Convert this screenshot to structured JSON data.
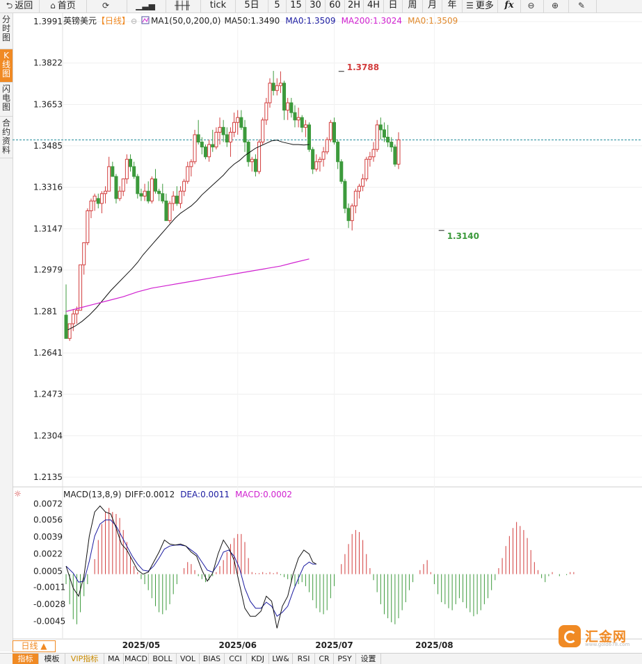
{
  "toolbar": {
    "items": [
      {
        "label": "返回",
        "icon": "back-arrow-icon",
        "glyph": "⮌"
      },
      {
        "label": "首页",
        "icon": "home-icon",
        "glyph": "⌂"
      },
      {
        "label": "",
        "icon": "refresh-icon",
        "glyph": "⟳"
      },
      {
        "label": "",
        "icon": "bar-chart-icon",
        "glyph": "▁▃▅"
      },
      {
        "label": "",
        "icon": "candlestick-icon",
        "glyph": "╫┼╫"
      },
      {
        "label": "tick",
        "icon": "",
        "glyph": ""
      },
      {
        "label": "5日",
        "icon": "",
        "glyph": ""
      },
      {
        "label": "5",
        "icon": "",
        "glyph": ""
      },
      {
        "label": "15",
        "icon": "",
        "glyph": ""
      },
      {
        "label": "30",
        "icon": "",
        "glyph": ""
      },
      {
        "label": "60",
        "icon": "",
        "glyph": ""
      },
      {
        "label": "2H",
        "icon": "",
        "glyph": ""
      },
      {
        "label": "4H",
        "icon": "",
        "glyph": ""
      },
      {
        "label": "日",
        "icon": "",
        "glyph": ""
      },
      {
        "label": "周",
        "icon": "",
        "glyph": ""
      },
      {
        "label": "月",
        "icon": "",
        "glyph": ""
      },
      {
        "label": "年",
        "icon": "",
        "glyph": ""
      },
      {
        "label": "更多",
        "icon": "menu-icon",
        "glyph": "☰"
      },
      {
        "label": "fx",
        "icon": "formula-icon",
        "glyph": ""
      },
      {
        "label": "",
        "icon": "zoom-out-icon",
        "glyph": "⊖"
      },
      {
        "label": "",
        "icon": "zoom-in-icon",
        "glyph": "⊕"
      },
      {
        "label": "",
        "icon": "draw-pen-icon",
        "glyph": "✎"
      }
    ]
  },
  "sidebar": {
    "items": [
      {
        "label": "分时图",
        "active": false
      },
      {
        "label": "K线图",
        "active": true
      },
      {
        "label": "闪电图",
        "active": false
      },
      {
        "label": "合约资料",
        "active": false
      }
    ]
  },
  "legend": {
    "symbol": "英镑美元",
    "period": "【日线】",
    "ma_name": "MA1(50,0,200,0)",
    "ma50": "MA50:1.3490",
    "ma0a": "MA0:1.3509",
    "ma200": "MA200:1.3024",
    "ma0b": "MA0:1.3509"
  },
  "macd_legend": {
    "name": "MACD(13,8,9)",
    "diff": "DIFF:0.0012",
    "dea": "DEA:0.0011",
    "macd": "MACD:0.0002"
  },
  "bottom": {
    "day_label": "日线 ▲",
    "tabs": [
      "指标",
      "模板",
      "VIP指标",
      "MA",
      "MACD",
      "BOLL",
      "VOL",
      "BIAS",
      "CCI",
      "KDJ",
      "LW&",
      "RSI",
      "CR",
      "PSY",
      "设置"
    ]
  },
  "logo": {
    "text": "汇金网",
    "url": "www.gold678.com"
  },
  "colors": {
    "up": "#d23c3c",
    "down": "#3c9a3c",
    "ma50": "#111111",
    "ma200": "#d020d0",
    "dea": "#1a1aa0",
    "diff": "#111111",
    "ref": "#1f8a9a",
    "accent": "#f08a24"
  },
  "chart_data": [
    {
      "type": "candlestick",
      "title": "英镑美元",
      "y_ticks": [
        1.3991,
        1.3822,
        1.3653,
        1.3485,
        1.3316,
        1.3147,
        1.2979,
        1.281,
        1.2641,
        1.2473,
        1.2304,
        1.2135
      ],
      "ylim": [
        1.2101,
        1.4025
      ],
      "x_labels": [
        "2025/05",
        "2025/06",
        "2025/07",
        "2025/08"
      ],
      "x_label_index": [
        21,
        48,
        75,
        103
      ],
      "reference_line": 1.3509,
      "annotations": [
        {
          "text": "1.3788",
          "index": 77,
          "value": 1.3788
        },
        {
          "text": "1.3140",
          "index": 105,
          "value": 1.314
        }
      ],
      "ohlc": [
        [
          1.2795,
          1.292,
          1.27,
          1.27
        ],
        [
          1.27,
          1.276,
          1.269,
          1.276
        ],
        [
          1.276,
          1.282,
          1.273,
          1.28
        ],
        [
          1.28,
          1.283,
          1.276,
          1.2815
        ],
        [
          1.2815,
          1.3,
          1.2815,
          1.3
        ],
        [
          1.3,
          1.309,
          1.296,
          1.309
        ],
        [
          1.309,
          1.323,
          1.308,
          1.322
        ],
        [
          1.322,
          1.327,
          1.319,
          1.326
        ],
        [
          1.326,
          1.329,
          1.322,
          1.328
        ],
        [
          1.327,
          1.329,
          1.323,
          1.325
        ],
        [
          1.325,
          1.33,
          1.321,
          1.329
        ],
        [
          1.329,
          1.332,
          1.325,
          1.33
        ],
        [
          1.33,
          1.344,
          1.33,
          1.34
        ],
        [
          1.34,
          1.342,
          1.336,
          1.336
        ],
        [
          1.336,
          1.337,
          1.325,
          1.327
        ],
        [
          1.327,
          1.332,
          1.326,
          1.33
        ],
        [
          1.33,
          1.335,
          1.328,
          1.335
        ],
        [
          1.335,
          1.345,
          1.333,
          1.343
        ],
        [
          1.343,
          1.345,
          1.338,
          1.34
        ],
        [
          1.34,
          1.342,
          1.335,
          1.336
        ],
        [
          1.336,
          1.337,
          1.327,
          1.329
        ],
        [
          1.329,
          1.331,
          1.326,
          1.328
        ],
        [
          1.328,
          1.333,
          1.326,
          1.33
        ],
        [
          1.33,
          1.334,
          1.325,
          1.326
        ],
        [
          1.326,
          1.336,
          1.325,
          1.335
        ],
        [
          1.335,
          1.339,
          1.329,
          1.33
        ],
        [
          1.33,
          1.331,
          1.326,
          1.329
        ],
        [
          1.329,
          1.333,
          1.325,
          1.326
        ],
        [
          1.326,
          1.329,
          1.318,
          1.318
        ],
        [
          1.318,
          1.326,
          1.317,
          1.325
        ],
        [
          1.325,
          1.33,
          1.322,
          1.328
        ],
        [
          1.328,
          1.332,
          1.324,
          1.325
        ],
        [
          1.325,
          1.332,
          1.323,
          1.33
        ],
        [
          1.33,
          1.335,
          1.328,
          1.334
        ],
        [
          1.334,
          1.342,
          1.333,
          1.34
        ],
        [
          1.34,
          1.343,
          1.336,
          1.342
        ],
        [
          1.342,
          1.355,
          1.341,
          1.353
        ],
        [
          1.353,
          1.359,
          1.349,
          1.35
        ],
        [
          1.35,
          1.352,
          1.345,
          1.348
        ],
        [
          1.348,
          1.349,
          1.343,
          1.344
        ],
        [
          1.344,
          1.351,
          1.342,
          1.349
        ],
        [
          1.349,
          1.355,
          1.346,
          1.348
        ],
        [
          1.348,
          1.356,
          1.347,
          1.354
        ],
        [
          1.354,
          1.36,
          1.349,
          1.356
        ],
        [
          1.356,
          1.359,
          1.35,
          1.353
        ],
        [
          1.353,
          1.356,
          1.348,
          1.35
        ],
        [
          1.35,
          1.356,
          1.344,
          1.354
        ],
        [
          1.354,
          1.362,
          1.352,
          1.358
        ],
        [
          1.358,
          1.363,
          1.353,
          1.36
        ],
        [
          1.36,
          1.363,
          1.355,
          1.356
        ],
        [
          1.356,
          1.359,
          1.346,
          1.35
        ],
        [
          1.35,
          1.351,
          1.34,
          1.342
        ],
        [
          1.342,
          1.344,
          1.338,
          1.343
        ],
        [
          1.343,
          1.345,
          1.336,
          1.338
        ],
        [
          1.338,
          1.351,
          1.337,
          1.35
        ],
        [
          1.35,
          1.36,
          1.349,
          1.359
        ],
        [
          1.359,
          1.368,
          1.357,
          1.366
        ],
        [
          1.366,
          1.376,
          1.364,
          1.374
        ],
        [
          1.374,
          1.379,
          1.369,
          1.371
        ],
        [
          1.371,
          1.376,
          1.369,
          1.373
        ],
        [
          1.373,
          1.3788,
          1.37,
          1.374
        ],
        [
          1.374,
          1.375,
          1.359,
          1.363
        ],
        [
          1.363,
          1.368,
          1.359,
          1.366
        ],
        [
          1.366,
          1.368,
          1.36,
          1.362
        ],
        [
          1.362,
          1.365,
          1.356,
          1.359
        ],
        [
          1.359,
          1.364,
          1.356,
          1.36
        ],
        [
          1.36,
          1.361,
          1.354,
          1.356
        ],
        [
          1.356,
          1.359,
          1.352,
          1.357
        ],
        [
          1.357,
          1.358,
          1.346,
          1.347
        ],
        [
          1.347,
          1.348,
          1.337,
          1.339
        ],
        [
          1.339,
          1.345,
          1.338,
          1.342
        ],
        [
          1.342,
          1.344,
          1.338,
          1.343
        ],
        [
          1.343,
          1.348,
          1.34,
          1.346
        ],
        [
          1.346,
          1.352,
          1.345,
          1.351
        ],
        [
          1.351,
          1.359,
          1.35,
          1.358
        ],
        [
          1.358,
          1.36,
          1.349,
          1.35
        ],
        [
          1.35,
          1.351,
          1.339,
          1.342
        ],
        [
          1.342,
          1.343,
          1.333,
          1.334
        ],
        [
          1.334,
          1.335,
          1.321,
          1.323
        ],
        [
          1.323,
          1.325,
          1.315,
          1.318
        ],
        [
          1.318,
          1.325,
          1.314,
          1.324
        ],
        [
          1.324,
          1.331,
          1.321,
          1.33
        ],
        [
          1.33,
          1.333,
          1.327,
          1.332
        ],
        [
          1.332,
          1.337,
          1.33,
          1.335
        ],
        [
          1.335,
          1.344,
          1.334,
          1.343
        ],
        [
          1.343,
          1.346,
          1.34,
          1.344
        ],
        [
          1.344,
          1.35,
          1.342,
          1.347
        ],
        [
          1.347,
          1.359,
          1.346,
          1.357
        ],
        [
          1.357,
          1.36,
          1.351,
          1.355
        ],
        [
          1.355,
          1.358,
          1.35,
          1.352
        ],
        [
          1.352,
          1.357,
          1.348,
          1.35
        ],
        [
          1.35,
          1.352,
          1.346,
          1.348
        ],
        [
          1.348,
          1.349,
          1.34,
          1.341
        ],
        [
          1.341,
          1.354,
          1.339,
          1.3509
        ]
      ],
      "ma50": [
        1.2735,
        1.275,
        1.277,
        1.2795,
        1.2825,
        1.286,
        1.2895,
        1.2925,
        1.2955,
        1.2985,
        1.301,
        1.304,
        1.3065,
        1.309,
        1.3115,
        1.314,
        1.3165,
        1.319,
        1.321,
        1.3225,
        1.324,
        1.326,
        1.3285,
        1.3305,
        1.3325,
        1.3345,
        1.3365,
        1.339,
        1.341,
        1.3425,
        1.3445,
        1.346,
        1.3475,
        1.3485,
        1.3495,
        1.3505,
        1.3508,
        1.35,
        1.3495,
        1.349,
        1.349,
        1.3488,
        1.349
      ],
      "ma50_index": [
        1,
        5,
        9,
        13,
        17,
        21,
        25,
        29,
        33,
        37,
        40,
        43,
        46,
        49,
        52,
        55,
        58,
        61,
        64,
        67,
        70,
        73,
        76,
        79,
        82,
        85,
        88,
        91,
        94,
        97,
        100,
        103,
        106,
        109,
        112,
        115,
        118,
        121,
        124,
        127,
        130,
        133,
        136
      ],
      "ma200": [
        1.281,
        1.2825,
        1.284,
        1.2855,
        1.287,
        1.289,
        1.2905,
        1.2915,
        1.2925,
        1.2935,
        1.2945,
        1.2955,
        1.2965,
        1.2975,
        1.2985,
        1.2995,
        1.301,
        1.3024
      ],
      "ma200_index": [
        0,
        8,
        16,
        24,
        32,
        40,
        48,
        56,
        64,
        72,
        80,
        88,
        96,
        104,
        112,
        120,
        128,
        136
      ]
    },
    {
      "type": "bar+line",
      "title": "MACD(13,8,9)",
      "y_ticks": [
        0.0072,
        0.0056,
        0.0039,
        0.0022,
        0.0005,
        -0.0011,
        -0.0028,
        -0.0045
      ],
      "ylim": [
        -0.0062,
        0.008
      ],
      "diff": [
        0.001,
        -0.0012,
        -0.002,
        0.0,
        0.004,
        0.0064,
        0.007,
        0.0064,
        0.0062,
        0.0048,
        0.0032,
        0.0026,
        0.0016,
        0.0006,
        0.0002,
        0.0004,
        0.0014,
        0.0024,
        0.0036,
        0.0032,
        0.0031,
        0.0032,
        0.003,
        0.0024,
        0.002,
        0.0006,
        -0.0005,
        0.0003,
        0.0022,
        0.0036,
        0.0028,
        0.0016,
        -0.0008,
        -0.0032,
        -0.004,
        -0.004,
        -0.0035,
        -0.002,
        -0.0025,
        -0.0052,
        -0.003,
        -0.002,
        0.0002,
        0.0018,
        0.0026,
        0.0022,
        0.0014,
        0.0012
      ],
      "dea": [
        0.001,
        0.0003,
        -0.0006,
        -0.0005,
        0.0015,
        0.004,
        0.0052,
        0.0056,
        0.0056,
        0.005,
        0.004,
        0.003,
        0.002,
        0.0012,
        0.0006,
        0.0005,
        0.001,
        0.0018,
        0.0027,
        0.003,
        0.0031,
        0.0031,
        0.003,
        0.0026,
        0.0022,
        0.0014,
        0.0006,
        0.0004,
        0.0012,
        0.0024,
        0.0026,
        0.002,
        0.0008,
        -0.0012,
        -0.0025,
        -0.0032,
        -0.0032,
        -0.0026,
        -0.003,
        -0.004,
        -0.0036,
        -0.003,
        -0.0015,
        -0.0002,
        0.001,
        0.0014,
        0.0012,
        0.0012
      ],
      "line_index": [
        0,
        4,
        7,
        10,
        13,
        16,
        19,
        22,
        25,
        28,
        31,
        34,
        37,
        40,
        43,
        46,
        49,
        52,
        55,
        58,
        61,
        64,
        67,
        70,
        73,
        76,
        79,
        82,
        85,
        88,
        91,
        94,
        97,
        100,
        103,
        106,
        109,
        112,
        115,
        118,
        121,
        124,
        127,
        130,
        133,
        136,
        138,
        140
      ],
      "histogram": [
        -0.001,
        -0.003,
        -0.0045,
        -0.005,
        -0.0038,
        -0.0022,
        -0.001,
        0.0,
        0.0015,
        0.0034,
        0.005,
        0.0062,
        0.0066,
        0.0062,
        0.006,
        0.0056,
        0.0044,
        0.0032,
        0.0018,
        0.0008,
        0.0002,
        -0.0005,
        -0.001,
        -0.0016,
        -0.0024,
        -0.0032,
        -0.0038,
        -0.004,
        -0.0036,
        -0.003,
        -0.002,
        -0.001,
        0.0,
        0.0006,
        0.0012,
        0.001,
        0.0004,
        -0.0002,
        -0.0005,
        -0.0008,
        -0.0006,
        -0.0002,
        0.0002,
        0.0008,
        0.0014,
        0.0022,
        0.003,
        0.0036,
        0.004,
        0.004,
        0.0032,
        0.0016,
        0.0002,
        0.0001,
        0.0001,
        0.0002,
        0.0001,
        0.0002,
        0.0001,
        0.0002,
        -0.0001,
        -0.0003,
        -0.0005,
        -0.0008,
        -0.0012,
        -0.001,
        -0.0008,
        -0.0012,
        -0.0018,
        -0.0026,
        -0.0034,
        -0.0038,
        -0.004,
        -0.0036,
        -0.0024,
        -0.0012,
        0.0,
        0.001,
        0.002,
        0.003,
        0.004,
        0.0044,
        0.0042,
        0.0034,
        0.002,
        0.0006,
        -0.0006,
        -0.0018,
        -0.003,
        -0.004,
        -0.0044,
        -0.0048,
        -0.005,
        -0.0044,
        -0.0036,
        -0.0028,
        -0.0016,
        -0.0008,
        0.0,
        0.0004,
        0.001,
        0.0014,
        0.0002,
        -0.001,
        -0.002,
        -0.0028,
        -0.003,
        -0.0034,
        -0.0036,
        -0.003,
        -0.0024,
        -0.0028,
        -0.0034,
        -0.0038,
        -0.0042,
        -0.004,
        -0.0036,
        -0.003,
        -0.0024,
        -0.0016,
        -0.0006,
        0.0006,
        0.0016,
        0.0028,
        0.0038,
        0.0046,
        0.0052,
        0.0048,
        0.0044,
        0.0036,
        0.0024,
        0.0012,
        0.0004,
        -0.0004,
        -0.0008,
        -0.0002,
        0.0002,
        0.0,
        -0.0002,
        0.0,
        -0.0001,
        0.0002,
        0.0002
      ]
    }
  ]
}
